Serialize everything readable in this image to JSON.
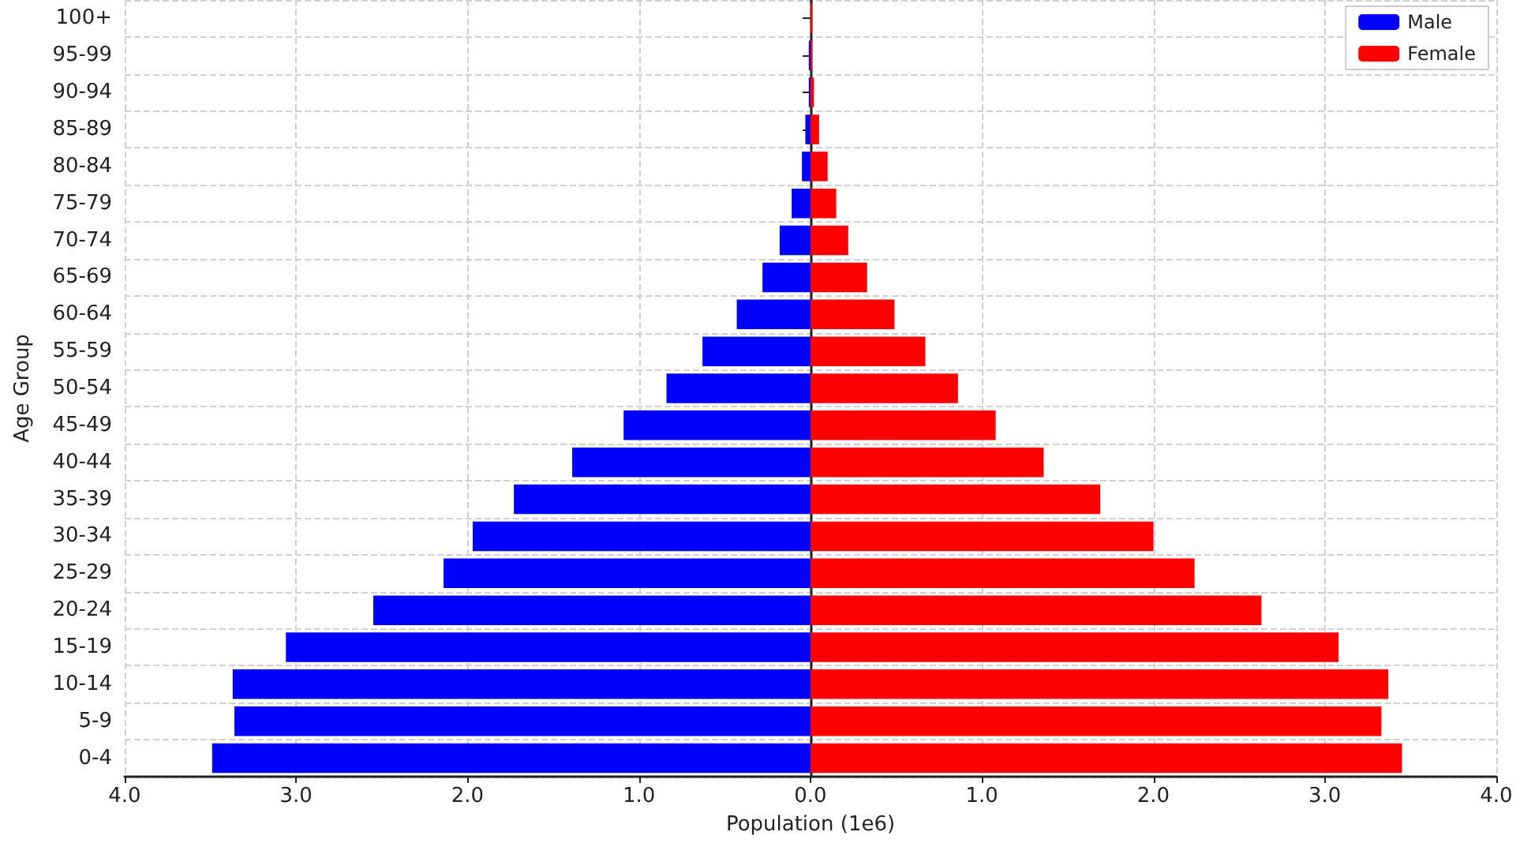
{
  "chart_data": {
    "type": "bar",
    "orientation": "horizontal",
    "xlabel": "Population (1e6)",
    "ylabel": "Age Group",
    "categories": [
      "100+",
      "95-99",
      "90-94",
      "85-89",
      "80-84",
      "75-79",
      "70-74",
      "65-69",
      "60-64",
      "55-59",
      "50-54",
      "45-49",
      "40-44",
      "35-39",
      "30-34",
      "25-29",
      "20-24",
      "15-19",
      "10-14",
      "5-9",
      "0-4"
    ],
    "series": [
      {
        "name": "Male",
        "color": "#0000ff",
        "values": [
          0,
          -0.01,
          -0.01,
          -0.03,
          -0.05,
          -0.11,
          -0.18,
          -0.28,
          -0.43,
          -0.63,
          -0.84,
          -1.09,
          -1.39,
          -1.73,
          -1.97,
          -2.14,
          -2.55,
          -3.06,
          -3.37,
          -3.36,
          -3.49
        ]
      },
      {
        "name": "Female",
        "color": "#ff0000",
        "values": [
          0.01,
          0.01,
          0.02,
          0.05,
          0.1,
          0.15,
          0.22,
          0.33,
          0.49,
          0.67,
          0.86,
          1.08,
          1.36,
          1.69,
          2.0,
          2.24,
          2.63,
          3.08,
          3.37,
          3.33,
          3.45
        ]
      }
    ],
    "xlim": [
      -4,
      4
    ],
    "xticks": [
      {
        "value": -4,
        "label": "4.0"
      },
      {
        "value": -3,
        "label": "3.0"
      },
      {
        "value": -2,
        "label": "2.0"
      },
      {
        "value": -1,
        "label": "1.0"
      },
      {
        "value": 0,
        "label": "0.0"
      },
      {
        "value": 1,
        "label": "1.0"
      },
      {
        "value": 2,
        "label": "2.0"
      },
      {
        "value": 3,
        "label": "3.0"
      },
      {
        "value": 4,
        "label": "4.0"
      }
    ],
    "stacked": true,
    "grid": true,
    "legend": "top right"
  }
}
